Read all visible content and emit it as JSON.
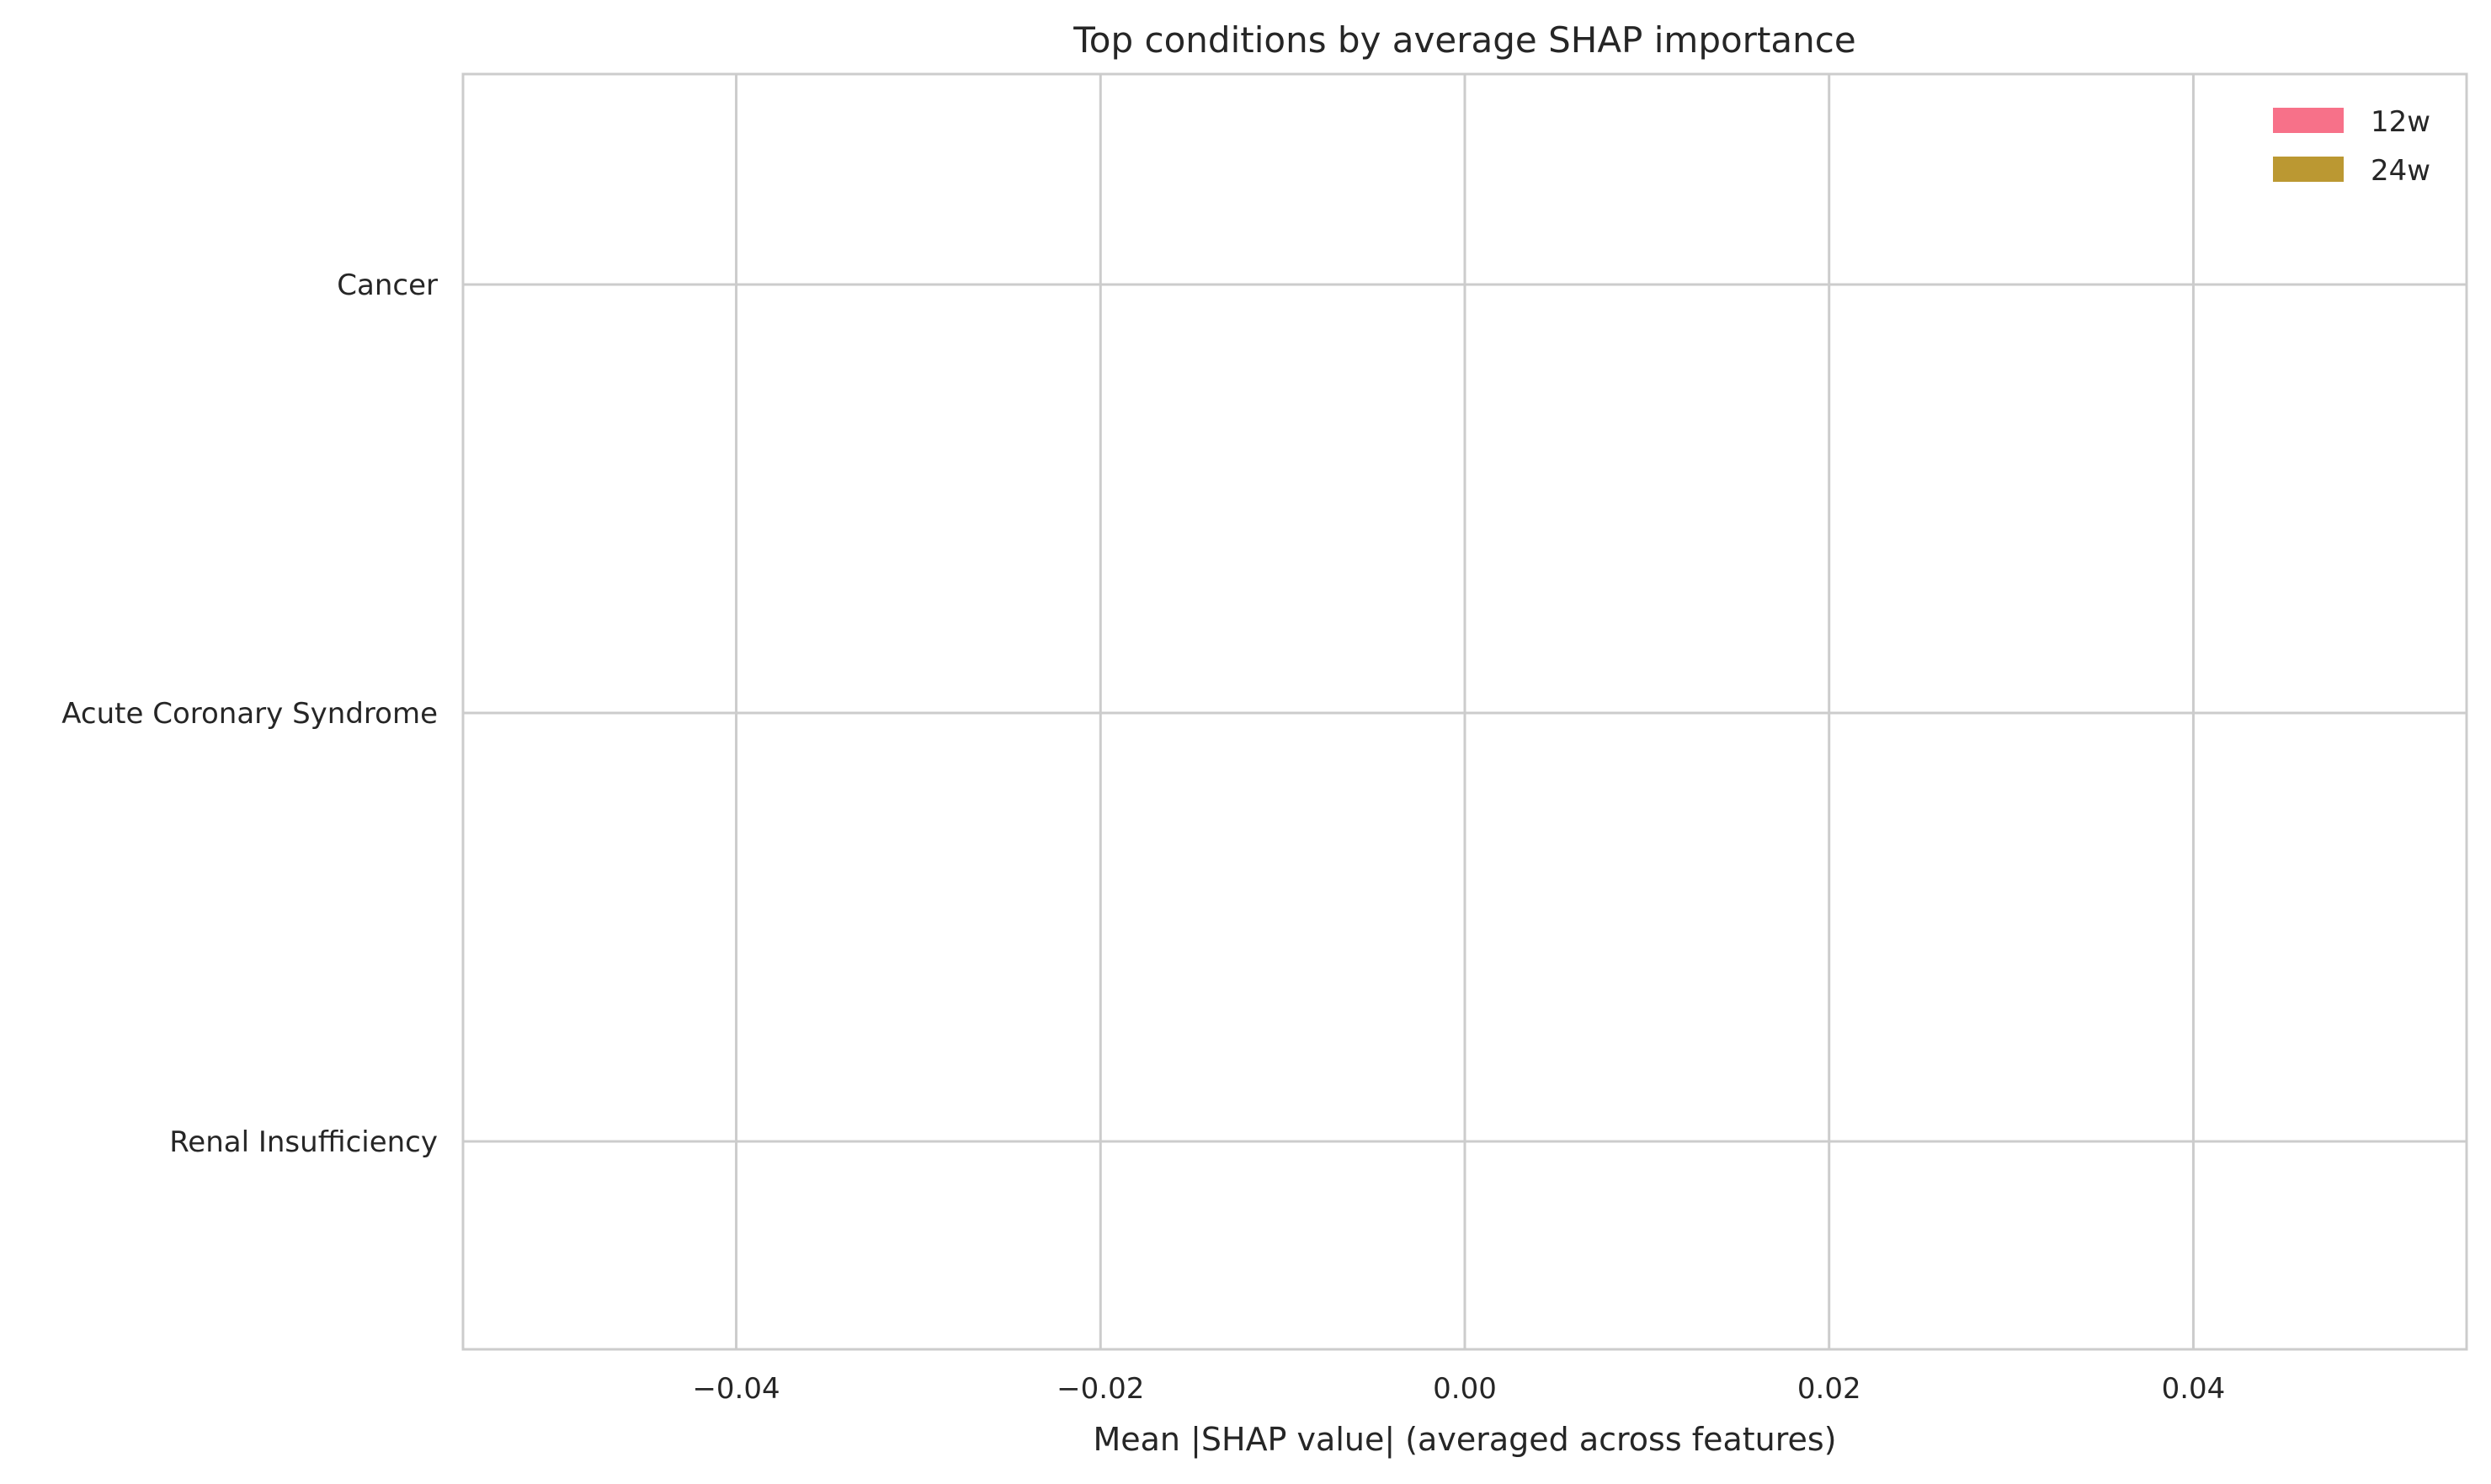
{
  "chart_data": {
    "type": "bar",
    "orientation": "horizontal",
    "title": "Top conditions by average SHAP importance",
    "xlabel": "Mean |SHAP value| (averaged across features)",
    "ylabel": "",
    "categories": [
      "Cancer",
      "Acute Coronary Syndrome",
      "Renal Insufficiency"
    ],
    "series": [
      {
        "name": "12w",
        "values": [
          0,
          0,
          0
        ],
        "color": "#f77189"
      },
      {
        "name": "24w",
        "values": [
          0,
          0,
          0
        ],
        "color": "#bb9832"
      }
    ],
    "xlim": [
      -0.055,
      0.055
    ],
    "xticks": [
      -0.04,
      -0.02,
      0.0,
      0.02,
      0.04
    ],
    "xtick_labels": [
      "−0.04",
      "−0.02",
      "0.00",
      "0.02",
      "0.04"
    ],
    "grid": true,
    "legend_position": "top-right"
  }
}
